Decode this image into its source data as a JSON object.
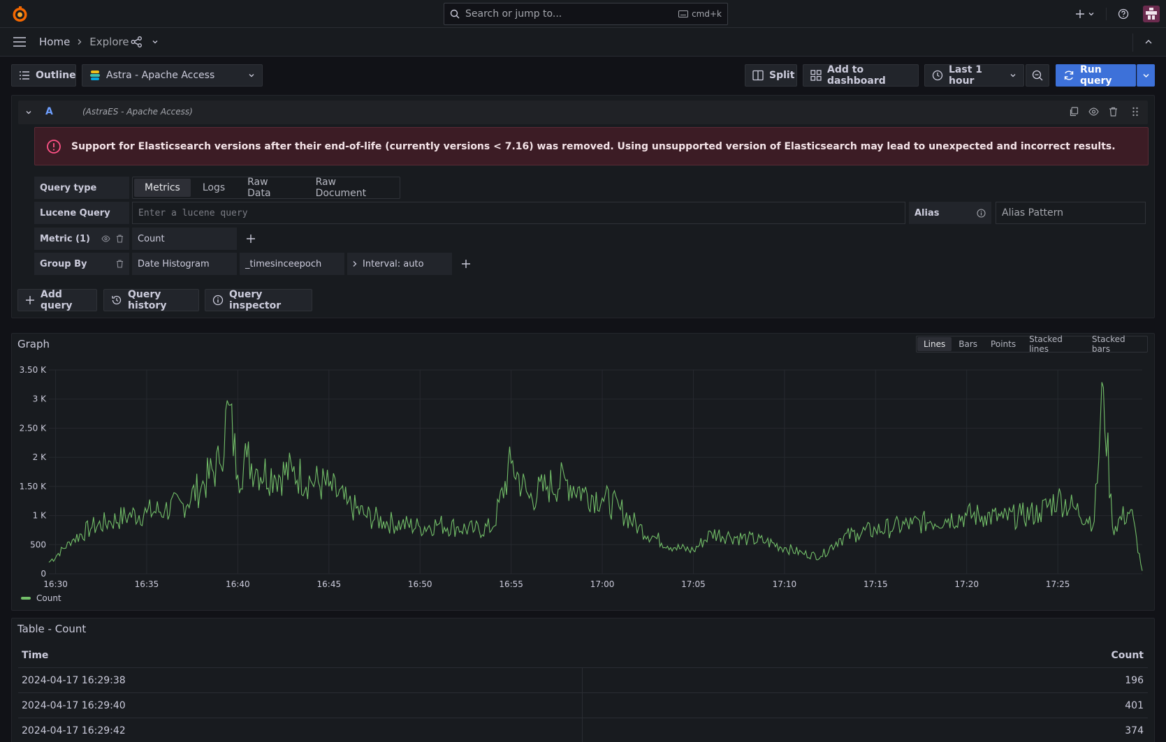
{
  "search": {
    "placeholder": "Search or jump to...",
    "shortcut": "cmd+k"
  },
  "breadcrumb": {
    "home": "Home",
    "explore": "Explore"
  },
  "toolbar": {
    "outline": "Outline",
    "datasource": "Astra - Apache Access",
    "split": "Split",
    "add_to_dashboard": "Add to dashboard",
    "time_range": "Last 1 hour",
    "run_query": "Run query"
  },
  "query": {
    "ref_id": "A",
    "datasource_hint": "(AstraES - Apache Access)",
    "alert": "Support for Elasticsearch versions after their end-of-life (currently versions < 7.16) was removed. Using unsupported version of Elasticsearch may lead to unexpected and incorrect results.",
    "query_type_label": "Query type",
    "query_types": [
      "Metrics",
      "Logs",
      "Raw Data",
      "Raw Document"
    ],
    "query_type_selected": "Metrics",
    "lucene_label": "Lucene Query",
    "lucene_placeholder": "Enter a lucene query",
    "alias_label": "Alias",
    "alias_placeholder": "Alias Pattern",
    "metric_label": "Metric (1)",
    "metric_value": "Count",
    "group_by_label": "Group By",
    "group_by_type": "Date Histogram",
    "group_by_field": "_timesinceepoch",
    "interval": "Interval: auto"
  },
  "actions": {
    "add_query": "Add query",
    "query_history": "Query history",
    "query_inspector": "Query inspector"
  },
  "graph": {
    "title": "Graph",
    "viz_options": [
      "Lines",
      "Bars",
      "Points",
      "Stacked lines",
      "Stacked bars"
    ],
    "viz_selected": "Lines",
    "legend": "Count",
    "series_color": "#73bf69"
  },
  "chart_data": {
    "type": "line",
    "title": "Graph",
    "xlabel": "",
    "ylabel": "",
    "x_ticks": [
      "16:30",
      "16:35",
      "16:40",
      "16:45",
      "16:50",
      "16:55",
      "17:00",
      "17:05",
      "17:10",
      "17:15",
      "17:20",
      "17:25"
    ],
    "y_ticks": [
      "0",
      "500",
      "1 K",
      "1.50 K",
      "2 K",
      "2.50 K",
      "3 K",
      "3.50 K"
    ],
    "ylim": [
      0,
      3500
    ],
    "xlim": [
      "16:29:38",
      "17:29:38"
    ],
    "grid": true,
    "legend_position": "bottom-left",
    "series": [
      {
        "name": "Count",
        "x": [
          "16:29:38",
          "16:31",
          "16:32",
          "16:33",
          "16:34",
          "16:35",
          "16:36",
          "16:37",
          "16:38",
          "16:39",
          "16:39:30",
          "16:40",
          "16:40:30",
          "16:41",
          "16:42",
          "16:43",
          "16:44",
          "16:45",
          "16:46",
          "16:47",
          "16:48",
          "16:49",
          "16:50",
          "16:51",
          "16:52",
          "16:53",
          "16:54",
          "16:55",
          "16:56",
          "16:57",
          "16:58",
          "16:59",
          "17:00",
          "17:01",
          "17:02",
          "17:03",
          "17:04",
          "17:05",
          "17:06",
          "17:07",
          "17:08",
          "17:09",
          "17:10",
          "17:11",
          "17:12",
          "17:13",
          "17:14",
          "17:15",
          "17:16",
          "17:17",
          "17:18",
          "17:19",
          "17:20",
          "17:21",
          "17:22",
          "17:23",
          "17:24",
          "17:25",
          "17:26",
          "17:27",
          "17:27:30",
          "17:28",
          "17:29",
          "17:29:38"
        ],
        "values": [
          196,
          600,
          800,
          900,
          1000,
          1050,
          1100,
          1200,
          1500,
          1900,
          2900,
          1700,
          2000,
          1800,
          1700,
          1750,
          1600,
          1500,
          1200,
          1000,
          900,
          850,
          800,
          850,
          800,
          750,
          800,
          1900,
          1300,
          1500,
          1600,
          1400,
          1300,
          1100,
          800,
          600,
          450,
          400,
          700,
          650,
          600,
          550,
          450,
          350,
          300,
          600,
          700,
          750,
          800,
          850,
          900,
          950,
          1000,
          1000,
          950,
          1000,
          1050,
          1300,
          1100,
          900,
          3200,
          800,
          1100,
          50
        ]
      }
    ]
  },
  "table": {
    "title": "Table - Count",
    "columns": [
      "Time",
      "Count"
    ],
    "rows": [
      [
        "2024-04-17 16:29:38",
        "196"
      ],
      [
        "2024-04-17 16:29:40",
        "401"
      ],
      [
        "2024-04-17 16:29:42",
        "374"
      ]
    ]
  },
  "colors": {
    "accent": "#3d71d9",
    "series": "#73bf69",
    "alert_icon": "#ff5286"
  }
}
